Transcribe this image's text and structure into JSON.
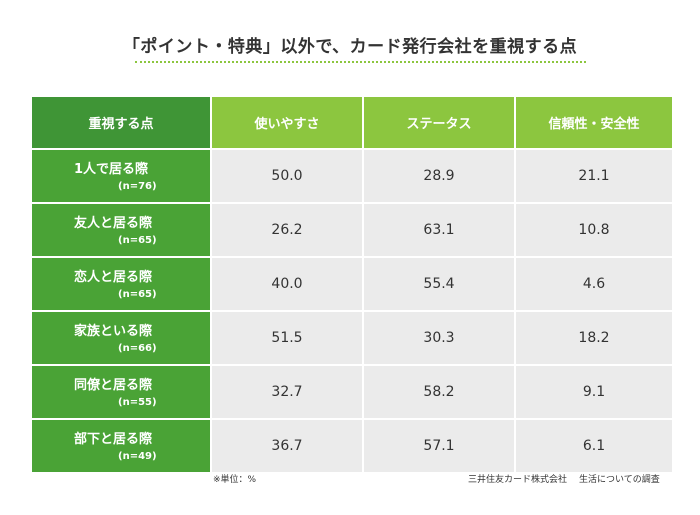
{
  "title": "「ポイント・特典」以外で、カード発行会社を重視する点",
  "colors": {
    "corner_header": "#3f9536",
    "column_header": "#8cc63f",
    "row_header": "#4aa336",
    "cell_background": "#ebebeb",
    "title_rule": "#8cc63f"
  },
  "chart_data": {
    "type": "table",
    "corner_label": "重視する点",
    "columns": [
      "使いやすさ",
      "ステータス",
      "信頼性・安全性"
    ],
    "rows": [
      {
        "label": "1人で居る際",
        "n": "(n=76)",
        "values": [
          "50.0",
          "28.9",
          "21.1"
        ]
      },
      {
        "label": "友人と居る際",
        "n": "(n=65)",
        "values": [
          "26.2",
          "63.1",
          "10.8"
        ]
      },
      {
        "label": "恋人と居る際",
        "n": "(n=65)",
        "values": [
          "40.0",
          "55.4",
          "4.6"
        ]
      },
      {
        "label": "家族といる際",
        "n": "(n=66)",
        "values": [
          "51.5",
          "30.3",
          "18.2"
        ]
      },
      {
        "label": "同僚と居る際",
        "n": "(n=55)",
        "values": [
          "32.7",
          "58.2",
          "9.1"
        ]
      },
      {
        "label": "部下と居る際",
        "n": "(n=49)",
        "values": [
          "36.7",
          "57.1",
          "6.1"
        ]
      }
    ],
    "unit_note": "※単位：%"
  },
  "source": {
    "company": "三井住友カード株式会社",
    "survey": "生活についての調査"
  }
}
